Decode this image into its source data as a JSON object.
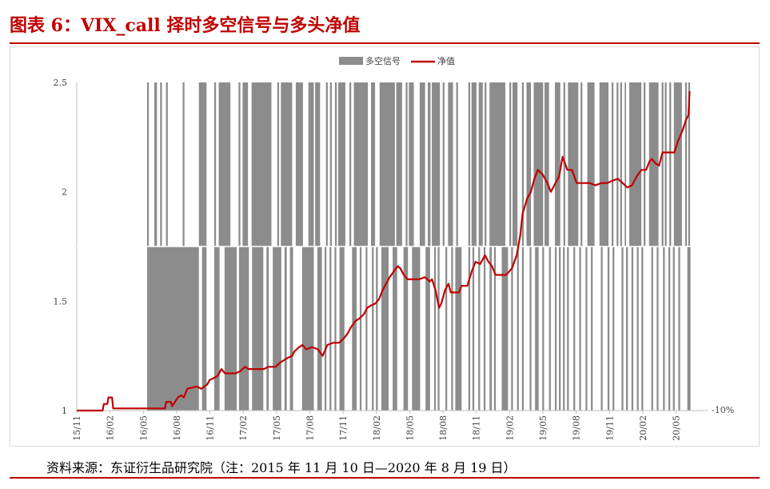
{
  "title": "图表 6：VIX_call 择时多空信号与多头净值",
  "source": "资料来源：东证衍生品研究院（注：2015 年 11 月 10 日—2020 年 8 月 19 日）",
  "colors": {
    "title": "#c00000",
    "signal": "#8c8c8c",
    "nav_line": "#c00000",
    "axis_text": "#404040"
  },
  "chart_data": {
    "type": "line",
    "legend": {
      "position": "top-center",
      "items": [
        "多空信号",
        "净值"
      ]
    },
    "x_ticks": [
      "15/11",
      "16/02",
      "16/05",
      "16/08",
      "16/11",
      "17/02",
      "17/05",
      "17/08",
      "17/11",
      "18/02",
      "18/05",
      "18/08",
      "18/11",
      "19/02",
      "19/05",
      "19/08",
      "19/11",
      "20/02",
      "20/05"
    ],
    "y_left": {
      "ticks": [
        "1",
        "1.5",
        "2",
        "2.5"
      ],
      "ylim": [
        1,
        2.5
      ]
    },
    "y_right": {
      "ticks": [
        "-10%"
      ]
    },
    "grid": false,
    "series": [
      {
        "name": "多空信号",
        "type": "bar",
        "baseline": "signal_axis",
        "long_intervals": [
          [
            15.6,
            16
          ],
          [
            17.2,
            17.8
          ],
          [
            18.5,
            18.9
          ],
          [
            19.8,
            20.2
          ],
          [
            23.5,
            23.9
          ],
          [
            27.1,
            28.8
          ],
          [
            30.5,
            30.9
          ],
          [
            31.5,
            34.1
          ],
          [
            35.9,
            36.3
          ],
          [
            36.8,
            38.0
          ],
          [
            38.8,
            43.2
          ],
          [
            44.5,
            44.9
          ],
          [
            45.3,
            47.8
          ],
          [
            48.6,
            50.2
          ],
          [
            51.4,
            52.6
          ],
          [
            52.9,
            54.0
          ],
          [
            55.3,
            55.7
          ],
          [
            56.2,
            56.6
          ],
          [
            57.3,
            57.7
          ],
          [
            58.0,
            59.6
          ],
          [
            60.5,
            60.9
          ],
          [
            61.5,
            64.6
          ],
          [
            65.3,
            66.2
          ],
          [
            67.2,
            70.6
          ],
          [
            70.9,
            72.2
          ],
          [
            73.0,
            73.4
          ],
          [
            73.7,
            74.8
          ],
          [
            76.1,
            77.3
          ],
          [
            77.9,
            78.5
          ],
          [
            78.8,
            80.6
          ],
          [
            81.2,
            81.6
          ],
          [
            82.4,
            83.5
          ],
          [
            84.2,
            84.6
          ],
          [
            86.9,
            87.3
          ],
          [
            87.6,
            88.7
          ],
          [
            89.2,
            90.1
          ],
          [
            90.5,
            90.9
          ],
          [
            91.6,
            95.1
          ],
          [
            96.0,
            96.4
          ],
          [
            96.7,
            97.8
          ],
          [
            98.8,
            99.2
          ],
          [
            99.8,
            100.8
          ],
          [
            101.4,
            103.5
          ],
          [
            103.8,
            104.8
          ],
          [
            106.1,
            107.3
          ],
          [
            108.0,
            108.4
          ],
          [
            109.0,
            111.3
          ],
          [
            111.8,
            112.2
          ],
          [
            113.3,
            114.9
          ],
          [
            116.0,
            118.0
          ],
          [
            118.7,
            119.1
          ],
          [
            119.8,
            120.2
          ],
          [
            120.6,
            121.0
          ],
          [
            121.6,
            121.9
          ],
          [
            122.6,
            125.3
          ],
          [
            125.8,
            126.2
          ],
          [
            127.0,
            129.1
          ],
          [
            129.8,
            130.2
          ],
          [
            130.5,
            130.9
          ],
          [
            131.5,
            131.9
          ],
          [
            132.5,
            134.3
          ],
          [
            135.0,
            135.4
          ],
          [
            135.7,
            136.1
          ]
        ],
        "short_intervals": [
          [
            15.6,
            27.1
          ],
          [
            27.8,
            28.8
          ],
          [
            30.5,
            31.7
          ],
          [
            32.8,
            35.5
          ],
          [
            36.0,
            38.2
          ],
          [
            38.9,
            41.4
          ],
          [
            42.1,
            42.6
          ],
          [
            43.5,
            45.4
          ],
          [
            46.1,
            46.6
          ],
          [
            47.3,
            48.0
          ],
          [
            50.0,
            52.6
          ],
          [
            53.4,
            54.4
          ],
          [
            55.0,
            55.4
          ],
          [
            56.1,
            56.5
          ],
          [
            57.2,
            57.6
          ],
          [
            58.3,
            59.4
          ],
          [
            61.1,
            62.1
          ],
          [
            62.8,
            63.2
          ],
          [
            64.1,
            64.5
          ],
          [
            65.5,
            65.9
          ],
          [
            66.4,
            66.8
          ],
          [
            67.6,
            69.2
          ],
          [
            70.1,
            71.1
          ],
          [
            72.5,
            73.5
          ],
          [
            74.4,
            76.2
          ],
          [
            77.4,
            78.4
          ],
          [
            79.3,
            79.7
          ],
          [
            80.1,
            80.5
          ],
          [
            81.8,
            82.2
          ],
          [
            83.1,
            83.5
          ],
          [
            84.0,
            85.4
          ],
          [
            86.9,
            87.3
          ],
          [
            87.8,
            88.2
          ],
          [
            89.1,
            89.5
          ],
          [
            90.3,
            90.7
          ],
          [
            91.6,
            92.1
          ],
          [
            92.6,
            93.0
          ],
          [
            94.3,
            95.7
          ],
          [
            96.4,
            96.8
          ],
          [
            97.7,
            98.1
          ],
          [
            98.8,
            99.2
          ],
          [
            100.5,
            100.9
          ],
          [
            101.7,
            102.5
          ],
          [
            103.3,
            103.7
          ],
          [
            104.8,
            105.2
          ],
          [
            106.1,
            106.5
          ],
          [
            107.0,
            107.4
          ],
          [
            107.9,
            108.3
          ],
          [
            108.8,
            109.2
          ],
          [
            110.2,
            110.6
          ],
          [
            111.5,
            111.9
          ],
          [
            112.9,
            113.3
          ],
          [
            114.1,
            114.5
          ],
          [
            116.3,
            116.7
          ],
          [
            117.8,
            118.2
          ],
          [
            118.9,
            119.3
          ],
          [
            120.9,
            121.3
          ],
          [
            121.9,
            122.3
          ],
          [
            123.1,
            123.5
          ],
          [
            124.3,
            124.7
          ],
          [
            125.3,
            125.7
          ],
          [
            127.5,
            127.9
          ],
          [
            128.7,
            129.1
          ],
          [
            130.1,
            130.5
          ],
          [
            131.3,
            131.7
          ],
          [
            132.3,
            132.7
          ],
          [
            133.5,
            133.9
          ],
          [
            135.5,
            136.2
          ]
        ]
      },
      {
        "name": "净值",
        "type": "line",
        "points": [
          [
            0,
            1
          ],
          [
            2.2,
            1
          ],
          [
            2.3,
            1.03
          ],
          [
            2.6,
            1.03
          ],
          [
            2.7,
            1.06
          ],
          [
            3.0,
            1.06
          ],
          [
            3.1,
            1.01
          ],
          [
            7.5,
            1.01
          ],
          [
            7.6,
            1.04
          ],
          [
            8.0,
            1.04
          ],
          [
            8.1,
            1.02
          ],
          [
            8.6,
            1.06
          ],
          [
            8.9,
            1.07
          ],
          [
            9.1,
            1.06
          ],
          [
            9.4,
            1.1
          ],
          [
            10.2,
            1.11
          ],
          [
            10.6,
            1.1
          ],
          [
            11.1,
            1.12
          ],
          [
            11.3,
            1.14
          ],
          [
            11.7,
            1.15
          ],
          [
            12.0,
            1.16
          ],
          [
            12.3,
            1.19
          ],
          [
            12.6,
            1.17
          ],
          [
            13.5,
            1.17
          ],
          [
            13.9,
            1.18
          ],
          [
            14.3,
            1.2
          ],
          [
            14.6,
            1.19
          ],
          [
            15.9,
            1.19
          ],
          [
            16.3,
            1.2
          ],
          [
            16.9,
            1.2
          ],
          [
            17.3,
            1.22
          ],
          [
            17.9,
            1.24
          ],
          [
            18.3,
            1.25
          ],
          [
            18.5,
            1.27
          ],
          [
            18.9,
            1.29
          ],
          [
            19.2,
            1.3
          ],
          [
            19.5,
            1.28
          ],
          [
            20.0,
            1.29
          ],
          [
            20.5,
            1.28
          ],
          [
            20.9,
            1.25
          ],
          [
            21.3,
            1.3
          ],
          [
            21.8,
            1.31
          ],
          [
            22.3,
            1.31
          ],
          [
            22.7,
            1.33
          ],
          [
            23.0,
            1.35
          ],
          [
            23.3,
            1.38
          ],
          [
            23.7,
            1.41
          ],
          [
            24.0,
            1.42
          ],
          [
            24.4,
            1.44
          ],
          [
            24.7,
            1.47
          ],
          [
            25.0,
            1.48
          ],
          [
            25.4,
            1.49
          ],
          [
            25.7,
            1.51
          ],
          [
            26.0,
            1.55
          ],
          [
            26.3,
            1.58
          ],
          [
            26.6,
            1.61
          ],
          [
            27.0,
            1.64
          ],
          [
            27.3,
            1.66
          ],
          [
            27.5,
            1.65
          ],
          [
            27.8,
            1.62
          ],
          [
            28.1,
            1.6
          ],
          [
            28.6,
            1.6
          ],
          [
            29.1,
            1.6
          ],
          [
            29.6,
            1.61
          ],
          [
            30.0,
            1.59
          ],
          [
            30.2,
            1.6
          ],
          [
            30.5,
            1.55
          ],
          [
            30.8,
            1.47
          ],
          [
            31.0,
            1.49
          ],
          [
            31.3,
            1.55
          ],
          [
            31.6,
            1.58
          ],
          [
            31.8,
            1.54
          ],
          [
            32.5,
            1.54
          ],
          [
            32.7,
            1.57
          ],
          [
            33.2,
            1.57
          ],
          [
            33.6,
            1.64
          ],
          [
            33.9,
            1.68
          ],
          [
            34.3,
            1.67
          ],
          [
            34.7,
            1.71
          ],
          [
            35.0,
            1.68
          ],
          [
            35.3,
            1.66
          ],
          [
            35.6,
            1.62
          ],
          [
            36.0,
            1.62
          ],
          [
            36.5,
            1.62
          ],
          [
            37.0,
            1.65
          ],
          [
            37.4,
            1.71
          ],
          [
            37.7,
            1.8
          ],
          [
            37.9,
            1.9
          ],
          [
            38.3,
            1.97
          ],
          [
            38.6,
            2.0
          ],
          [
            38.9,
            2.06
          ],
          [
            39.2,
            2.1
          ],
          [
            39.6,
            2.08
          ],
          [
            40.0,
            2.04
          ],
          [
            40.3,
            2.0
          ],
          [
            40.6,
            2.03
          ],
          [
            41.0,
            2.07
          ],
          [
            41.3,
            2.16
          ],
          [
            41.7,
            2.1
          ],
          [
            42.1,
            2.1
          ],
          [
            42.5,
            2.04
          ],
          [
            43.2,
            2.04
          ],
          [
            43.6,
            2.04
          ],
          [
            44.1,
            2.03
          ],
          [
            44.6,
            2.04
          ],
          [
            45.1,
            2.04
          ],
          [
            45.5,
            2.05
          ],
          [
            46.0,
            2.06
          ],
          [
            46.4,
            2.04
          ],
          [
            46.8,
            2.02
          ],
          [
            47.2,
            2.03
          ],
          [
            47.6,
            2.07
          ],
          [
            48.0,
            2.1
          ],
          [
            48.4,
            2.1
          ],
          [
            48.7,
            2.14
          ],
          [
            48.9,
            2.15
          ],
          [
            49.2,
            2.13
          ],
          [
            49.5,
            2.12
          ],
          [
            49.8,
            2.18
          ],
          [
            50.4,
            2.18
          ],
          [
            50.8,
            2.18
          ],
          [
            51.1,
            2.23
          ],
          [
            51.5,
            2.28
          ],
          [
            51.8,
            2.33
          ],
          [
            52.0,
            2.35
          ],
          [
            52.1,
            2.46
          ]
        ]
      }
    ]
  }
}
